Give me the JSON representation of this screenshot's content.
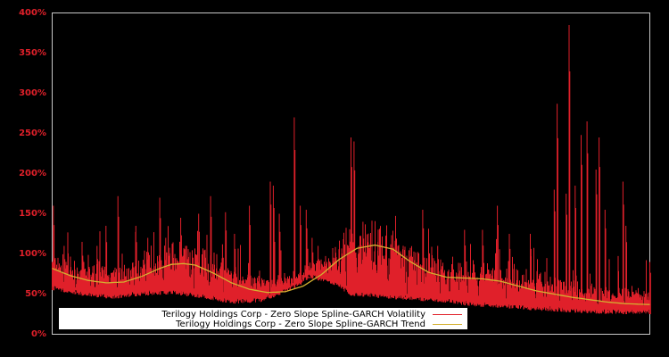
{
  "chart_data": {
    "type": "line",
    "title": "",
    "xlabel": "",
    "ylabel": "",
    "ylim": [
      0,
      400
    ],
    "y_ticks": [
      "0%",
      "50%",
      "100%",
      "150%",
      "200%",
      "250%",
      "300%",
      "350%",
      "400%"
    ],
    "x_ticks": [],
    "grid": false,
    "legend_position": "lower-center",
    "background": "#000000",
    "axis_color": "#c8c8c8",
    "tick_label_color": "#e0202a",
    "series": [
      {
        "name": "Terilogy Holdings Corp - Zero Slope Spline-GARCH Volatility",
        "color": "#e0202a",
        "note": "spiky daily volatility; baseline and notable spike peaks estimated (x in 0-1 fraction of plot width, y in %)",
        "baseline": [
          [
            0.0,
            55
          ],
          [
            0.05,
            48
          ],
          [
            0.1,
            44
          ],
          [
            0.15,
            48
          ],
          [
            0.2,
            50
          ],
          [
            0.25,
            45
          ],
          [
            0.3,
            38
          ],
          [
            0.35,
            40
          ],
          [
            0.4,
            55
          ],
          [
            0.43,
            70
          ],
          [
            0.47,
            62
          ],
          [
            0.5,
            48
          ],
          [
            0.55,
            45
          ],
          [
            0.6,
            42
          ],
          [
            0.65,
            40
          ],
          [
            0.7,
            35
          ],
          [
            0.75,
            33
          ],
          [
            0.8,
            30
          ],
          [
            0.85,
            28
          ],
          [
            0.9,
            26
          ],
          [
            0.95,
            25
          ],
          [
            1.0,
            25
          ]
        ],
        "spikes": [
          [
            0.002,
            160
          ],
          [
            0.02,
            110
          ],
          [
            0.05,
            115
          ],
          [
            0.075,
            110
          ],
          [
            0.09,
            135
          ],
          [
            0.11,
            172
          ],
          [
            0.14,
            135
          ],
          [
            0.16,
            120
          ],
          [
            0.18,
            170
          ],
          [
            0.19,
            120
          ],
          [
            0.215,
            145
          ],
          [
            0.225,
            110
          ],
          [
            0.245,
            150
          ],
          [
            0.265,
            172
          ],
          [
            0.285,
            112
          ],
          [
            0.29,
            152
          ],
          [
            0.305,
            125
          ],
          [
            0.33,
            160
          ],
          [
            0.365,
            190
          ],
          [
            0.37,
            185
          ],
          [
            0.38,
            150
          ],
          [
            0.405,
            270
          ],
          [
            0.415,
            160
          ],
          [
            0.425,
            155
          ],
          [
            0.435,
            120
          ],
          [
            0.445,
            110
          ],
          [
            0.5,
            245
          ],
          [
            0.505,
            240
          ],
          [
            0.52,
            140
          ],
          [
            0.545,
            115
          ],
          [
            0.575,
            85
          ],
          [
            0.62,
            155
          ],
          [
            0.645,
            110
          ],
          [
            0.69,
            130
          ],
          [
            0.72,
            130
          ],
          [
            0.745,
            160
          ],
          [
            0.765,
            125
          ],
          [
            0.8,
            125
          ],
          [
            0.84,
            180
          ],
          [
            0.845,
            287
          ],
          [
            0.86,
            175
          ],
          [
            0.865,
            385
          ],
          [
            0.875,
            185
          ],
          [
            0.885,
            248
          ],
          [
            0.895,
            265
          ],
          [
            0.91,
            205
          ],
          [
            0.915,
            245
          ],
          [
            0.925,
            155
          ],
          [
            0.955,
            190
          ],
          [
            0.96,
            135
          ],
          [
            1.0,
            90
          ]
        ]
      },
      {
        "name": "Terilogy Holdings Corp - Zero Slope Spline-GARCH Trend",
        "color": "#d4b030",
        "points": [
          [
            0.0,
            82
          ],
          [
            0.03,
            73
          ],
          [
            0.06,
            67
          ],
          [
            0.09,
            64
          ],
          [
            0.12,
            65
          ],
          [
            0.15,
            72
          ],
          [
            0.18,
            82
          ],
          [
            0.2,
            87
          ],
          [
            0.22,
            88
          ],
          [
            0.24,
            86
          ],
          [
            0.27,
            76
          ],
          [
            0.3,
            64
          ],
          [
            0.33,
            56
          ],
          [
            0.36,
            52
          ],
          [
            0.39,
            53
          ],
          [
            0.42,
            60
          ],
          [
            0.45,
            74
          ],
          [
            0.48,
            93
          ],
          [
            0.51,
            107
          ],
          [
            0.54,
            111
          ],
          [
            0.57,
            106
          ],
          [
            0.6,
            90
          ],
          [
            0.63,
            77
          ],
          [
            0.66,
            71
          ],
          [
            0.69,
            70
          ],
          [
            0.72,
            69
          ],
          [
            0.75,
            66
          ],
          [
            0.78,
            60
          ],
          [
            0.81,
            54
          ],
          [
            0.84,
            50
          ],
          [
            0.87,
            46
          ],
          [
            0.9,
            43
          ],
          [
            0.93,
            40
          ],
          [
            0.96,
            38
          ],
          [
            1.0,
            37
          ]
        ]
      }
    ]
  },
  "legend": {
    "items": [
      {
        "label": "Terilogy Holdings Corp - Zero Slope Spline-GARCH Volatility",
        "color": "#e0202a"
      },
      {
        "label": "Terilogy Holdings Corp - Zero Slope Spline-GARCH Trend",
        "color": "#d4b030"
      }
    ]
  }
}
